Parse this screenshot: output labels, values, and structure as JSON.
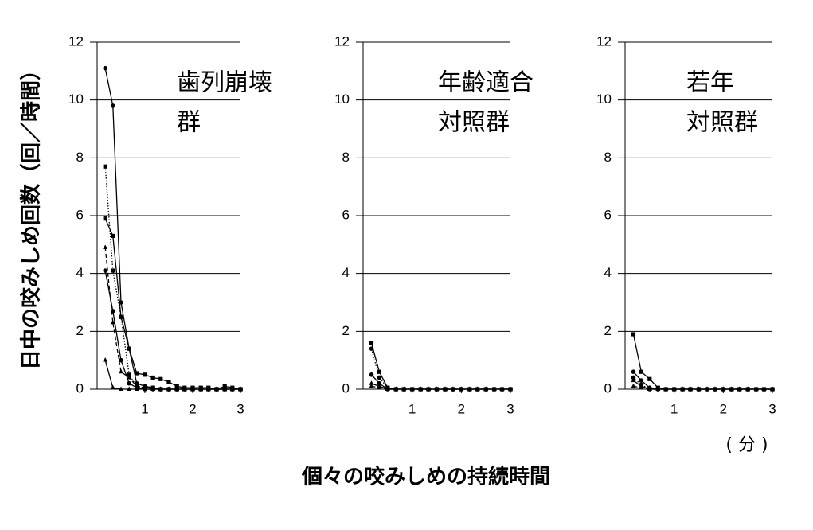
{
  "shared": {
    "y_label": "日中の咬みしめ回数（回／時間）",
    "x_label": "個々の咬みしめの持続時間",
    "x_unit": "( 分 )"
  },
  "chart_data": [
    {
      "type": "line",
      "title": [
        "歯列崩壊",
        "群"
      ],
      "x": [
        0.17,
        0.33,
        0.5,
        0.67,
        0.83,
        1,
        1.17,
        1.33,
        1.5,
        1.67,
        1.83,
        2,
        2.17,
        2.33,
        2.5,
        2.67,
        2.83,
        3
      ],
      "xlim": [
        0,
        3
      ],
      "xticks": [
        1,
        2,
        3
      ],
      "ylim": [
        0,
        12
      ],
      "yticks": [
        0,
        2,
        4,
        6,
        8,
        10,
        12
      ],
      "grid": true,
      "series": [
        {
          "color": "#000000",
          "marker": "circle",
          "dash": "solid",
          "values": [
            11.1,
            9.8,
            3.0,
            1.4,
            0.2,
            0.1,
            0.05,
            0,
            0,
            0,
            0,
            0,
            0,
            0,
            0,
            0,
            0,
            0
          ]
        },
        {
          "color": "#000000",
          "marker": "square",
          "dash": "solid",
          "values": [
            5.9,
            5.3,
            2.5,
            1.4,
            0.55,
            0.5,
            0.4,
            0.35,
            0.25,
            0.1,
            0.05,
            0.05,
            0.05,
            0.05,
            0,
            0.1,
            0.05,
            0
          ]
        },
        {
          "color": "#000000",
          "marker": "square",
          "dash": "dotted",
          "values": [
            7.7,
            4.1,
            2.5,
            0.5,
            0.1,
            0.05,
            0.05,
            0,
            0,
            0,
            0,
            0,
            0,
            0,
            0,
            0,
            0,
            0
          ]
        },
        {
          "color": "#000000",
          "marker": "triangle",
          "dash": "dashed",
          "values": [
            4.9,
            2.3,
            0.6,
            0.4,
            0.1,
            0.05,
            0,
            0,
            0,
            0,
            0,
            0,
            0,
            0,
            0,
            0,
            0,
            0
          ]
        },
        {
          "color": "#000000",
          "marker": "circle",
          "dash": "solid",
          "values": [
            4.1,
            2.7,
            1.0,
            0.2,
            0.05,
            0,
            0,
            0,
            0,
            0,
            0,
            0,
            0,
            0,
            0,
            0,
            0,
            0
          ]
        },
        {
          "color": "#000000",
          "marker": "triangle",
          "dash": "solid",
          "values": [
            1.0,
            0.05,
            0,
            0,
            0,
            0,
            0,
            0,
            0,
            0,
            0,
            0,
            0,
            0,
            0,
            0,
            0,
            0
          ]
        }
      ]
    },
    {
      "type": "line",
      "title": [
        "年齢適合",
        "対照群"
      ],
      "x": [
        0.17,
        0.33,
        0.5,
        0.67,
        0.83,
        1,
        1.17,
        1.33,
        1.5,
        1.67,
        1.83,
        2,
        2.17,
        2.33,
        2.5,
        2.67,
        2.83,
        3
      ],
      "xlim": [
        0,
        3
      ],
      "xticks": [
        1,
        2,
        3
      ],
      "ylim": [
        0,
        12
      ],
      "yticks": [
        0,
        2,
        4,
        6,
        8,
        10,
        12
      ],
      "grid": true,
      "series": [
        {
          "color": "#000000",
          "marker": "square",
          "dash": "solid",
          "values": [
            1.6,
            0.6,
            0.05,
            0,
            0,
            0,
            0,
            0,
            0,
            0,
            0,
            0,
            0,
            0,
            0,
            0,
            0,
            0
          ]
        },
        {
          "color": "#000000",
          "marker": "circle",
          "dash": "dotted",
          "values": [
            1.4,
            0.4,
            0.05,
            0,
            0,
            0,
            0,
            0,
            0,
            0,
            0,
            0,
            0,
            0,
            0,
            0,
            0,
            0
          ]
        },
        {
          "color": "#000000",
          "marker": "circle",
          "dash": "solid",
          "values": [
            0.5,
            0.2,
            0,
            0,
            0,
            0,
            0,
            0,
            0,
            0,
            0,
            0,
            0,
            0,
            0,
            0,
            0,
            0
          ]
        },
        {
          "color": "#000000",
          "marker": "triangle",
          "dash": "solid",
          "values": [
            0.2,
            0.1,
            0,
            0,
            0,
            0,
            0,
            0,
            0,
            0,
            0,
            0,
            0,
            0,
            0,
            0,
            0,
            0
          ]
        },
        {
          "color": "#000000",
          "marker": "triangle",
          "dash": "dashed",
          "values": [
            0.1,
            0.05,
            0,
            0,
            0,
            0,
            0,
            0,
            0,
            0,
            0,
            0,
            0,
            0,
            0,
            0,
            0,
            0
          ]
        }
      ]
    },
    {
      "type": "line",
      "title": [
        "若年",
        "対照群"
      ],
      "x": [
        0.17,
        0.33,
        0.5,
        0.67,
        0.83,
        1,
        1.17,
        1.33,
        1.5,
        1.67,
        1.83,
        2,
        2.17,
        2.33,
        2.5,
        2.67,
        2.83,
        3
      ],
      "xlim": [
        0,
        3
      ],
      "xticks": [
        1,
        2,
        3
      ],
      "ylim": [
        0,
        12
      ],
      "yticks": [
        0,
        2,
        4,
        6,
        8,
        10,
        12
      ],
      "grid": true,
      "series": [
        {
          "color": "#000000",
          "marker": "square",
          "dash": "solid",
          "values": [
            1.9,
            0.6,
            0.35,
            0.05,
            0,
            0,
            0,
            0,
            0,
            0,
            0,
            0,
            0,
            0,
            0,
            0,
            0,
            0
          ]
        },
        {
          "color": "#000000",
          "marker": "circle",
          "dash": "solid",
          "values": [
            0.6,
            0.3,
            0.05,
            0,
            0,
            0,
            0,
            0,
            0,
            0,
            0,
            0,
            0,
            0,
            0,
            0,
            0,
            0
          ]
        },
        {
          "color": "#000000",
          "marker": "circle",
          "dash": "dotted",
          "values": [
            0.4,
            0.15,
            0,
            0,
            0,
            0,
            0,
            0,
            0,
            0,
            0,
            0,
            0,
            0,
            0,
            0,
            0,
            0
          ]
        },
        {
          "color": "#000000",
          "marker": "triangle",
          "dash": "solid",
          "values": [
            0.3,
            0.1,
            0,
            0,
            0,
            0,
            0,
            0,
            0,
            0,
            0,
            0,
            0,
            0,
            0,
            0,
            0,
            0
          ]
        },
        {
          "color": "#000000",
          "marker": "triangle",
          "dash": "dashed",
          "values": [
            0.1,
            0.05,
            0,
            0,
            0,
            0,
            0,
            0,
            0,
            0,
            0,
            0,
            0,
            0,
            0,
            0,
            0,
            0
          ]
        }
      ]
    }
  ]
}
